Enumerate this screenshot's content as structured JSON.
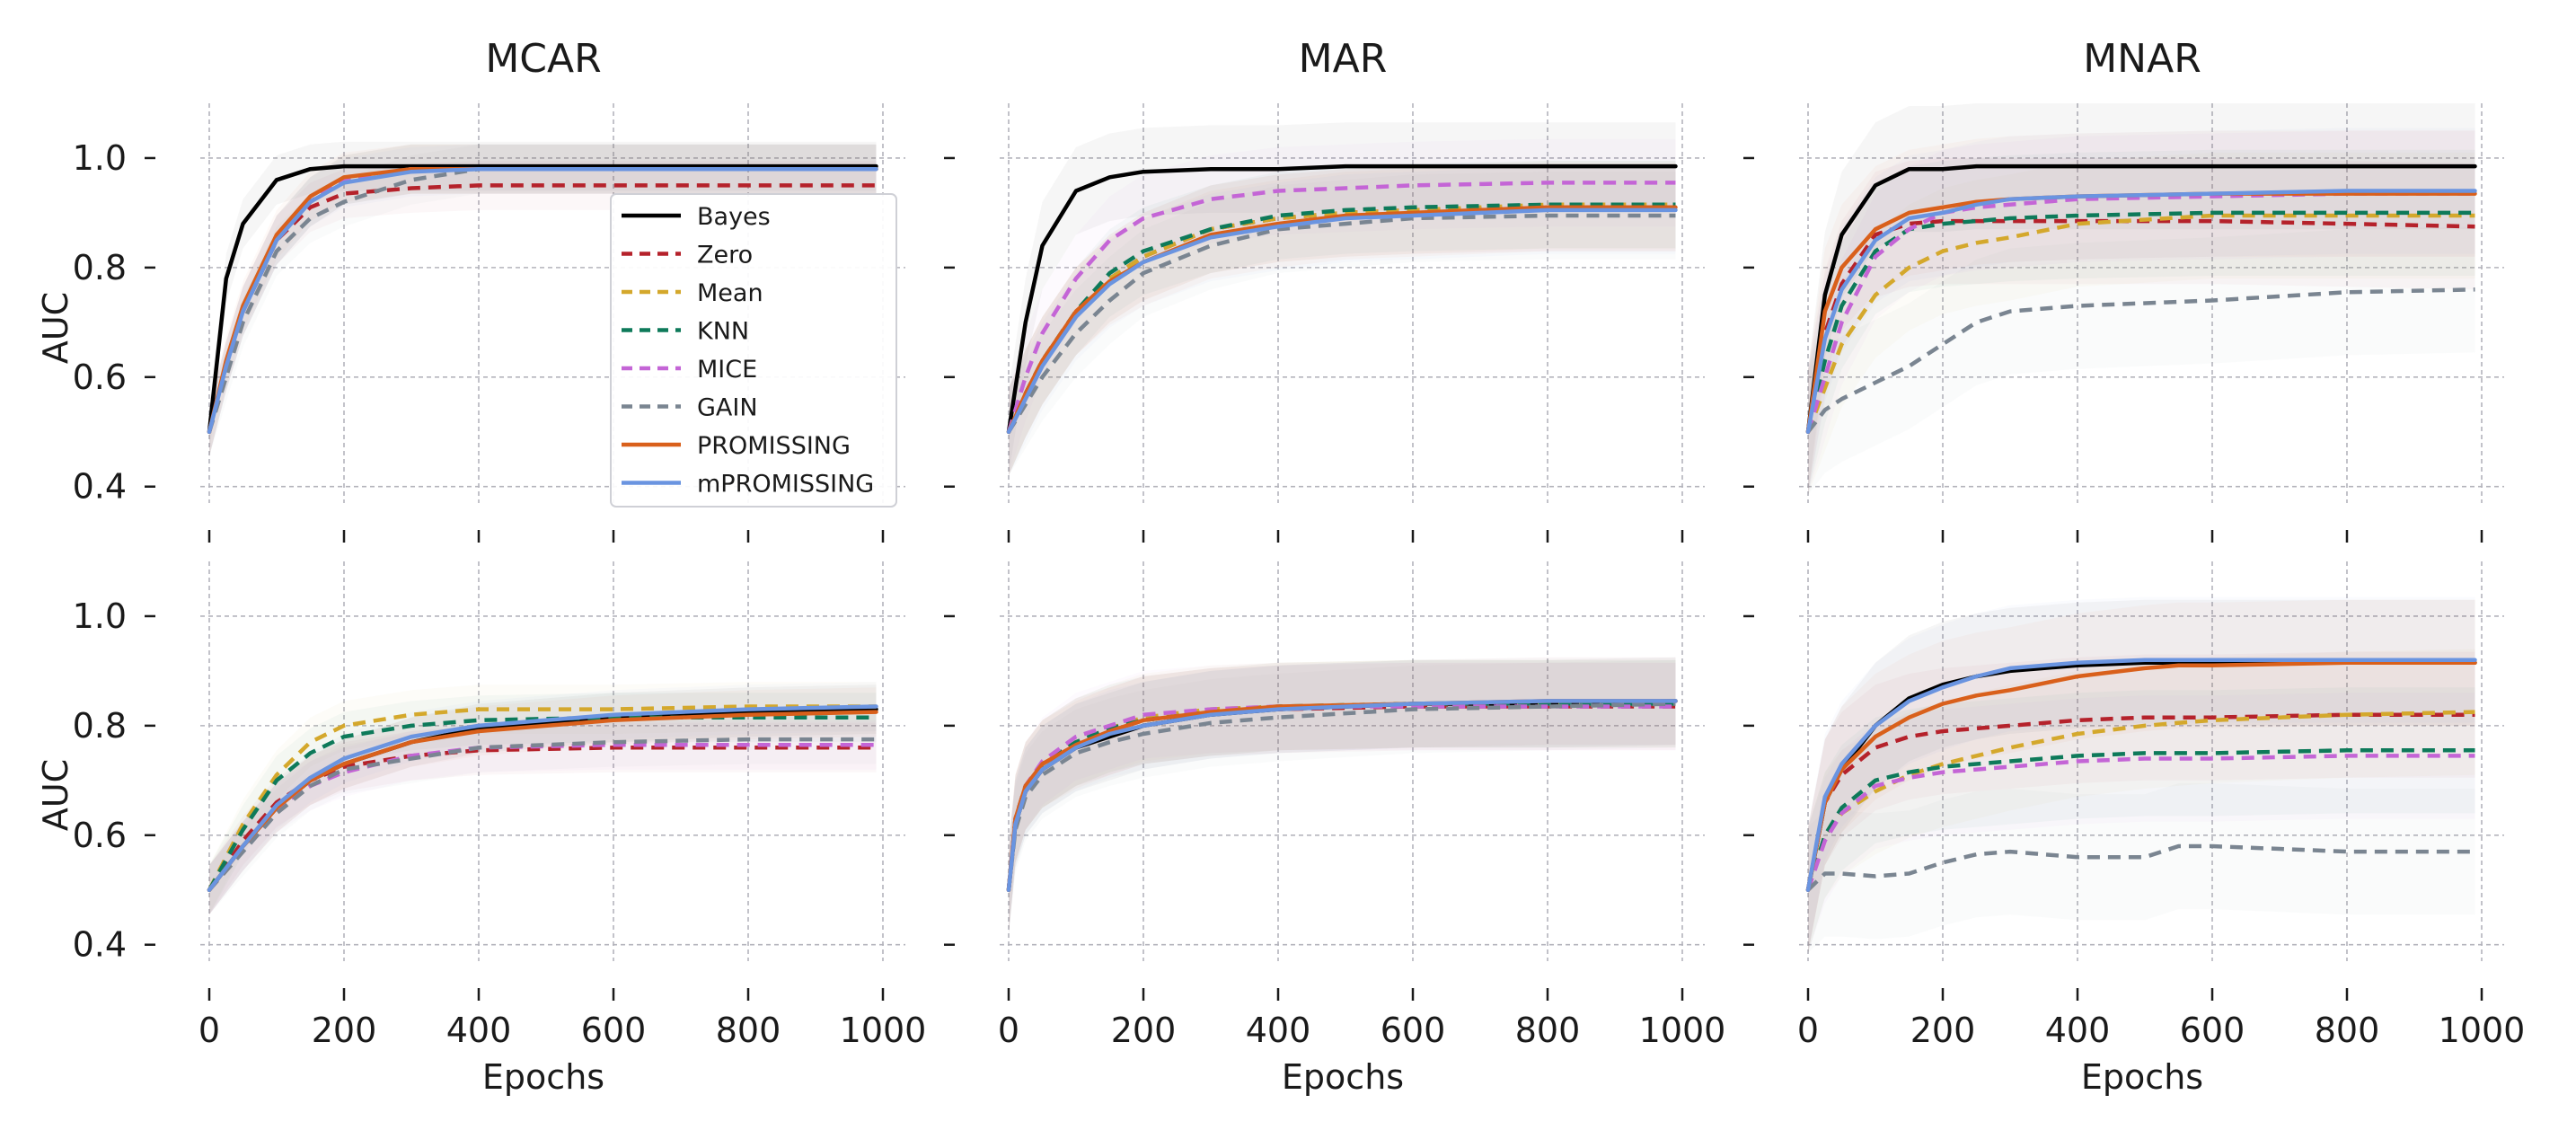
{
  "figure": {
    "column_titles": [
      "MCAR",
      "MAR",
      "MNAR"
    ],
    "ylabel": "AUC",
    "xlabel": "Epochs"
  },
  "chart_data": {
    "type": "line",
    "grid": true,
    "legend_location": "top-left panel, right side",
    "shared_axes": {
      "x_ticks": [
        0,
        200,
        400,
        600,
        800,
        1000
      ],
      "y_ticks": [
        0.4,
        0.6,
        0.8,
        1.0
      ],
      "x_tick_labels": [
        "0",
        "200",
        "400",
        "600",
        "800",
        "1000"
      ],
      "y_tick_labels": [
        "0.4",
        "0.6",
        "0.8",
        "1.0"
      ],
      "xlim": [
        0,
        1000
      ],
      "ylim": [
        0.37,
        1.1
      ]
    },
    "series_styles": [
      {
        "name": "Bayes",
        "color": "#000000",
        "dashed": false
      },
      {
        "name": "Zero",
        "color": "#b5222b",
        "dashed": true
      },
      {
        "name": "Mean",
        "color": "#d4a82c",
        "dashed": true
      },
      {
        "name": "KNN",
        "color": "#0e7a5a",
        "dashed": true
      },
      {
        "name": "MICE",
        "color": "#c465d6",
        "dashed": true
      },
      {
        "name": "GAIN",
        "color": "#7a8591",
        "dashed": true
      },
      {
        "name": "PROMISSING",
        "color": "#d9601b",
        "dashed": false
      },
      {
        "name": "mPROMISSING",
        "color": "#6a94e0",
        "dashed": false
      }
    ],
    "panels": [
      {
        "row": 0,
        "col": 0,
        "title": "MCAR",
        "show_legend": true,
        "x": [
          0,
          25,
          50,
          100,
          150,
          200,
          300,
          400,
          600,
          800,
          990
        ],
        "series": [
          {
            "name": "Bayes",
            "values": [
              0.5,
              0.78,
              0.88,
              0.96,
              0.98,
              0.985,
              0.985,
              0.985,
              0.985,
              0.985,
              0.985
            ]
          },
          {
            "name": "Zero",
            "values": [
              0.5,
              0.62,
              0.72,
              0.85,
              0.91,
              0.935,
              0.945,
              0.95,
              0.95,
              0.95,
              0.95
            ]
          },
          {
            "name": "Mean",
            "values": [
              0.5,
              0.62,
              0.72,
              0.85,
              0.92,
              0.96,
              0.98,
              0.98,
              0.98,
              0.98,
              0.98
            ]
          },
          {
            "name": "KNN",
            "values": [
              0.5,
              0.62,
              0.72,
              0.85,
              0.92,
              0.96,
              0.98,
              0.98,
              0.98,
              0.98,
              0.98
            ]
          },
          {
            "name": "MICE",
            "values": [
              0.5,
              0.62,
              0.72,
              0.85,
              0.92,
              0.96,
              0.98,
              0.98,
              0.98,
              0.98,
              0.98
            ]
          },
          {
            "name": "GAIN",
            "values": [
              0.5,
              0.6,
              0.7,
              0.83,
              0.89,
              0.92,
              0.96,
              0.98,
              0.98,
              0.98,
              0.98
            ]
          },
          {
            "name": "PROMISSING",
            "values": [
              0.5,
              0.63,
              0.73,
              0.86,
              0.93,
              0.965,
              0.98,
              0.98,
              0.98,
              0.98,
              0.98
            ]
          },
          {
            "name": "mPROMISSING",
            "values": [
              0.5,
              0.62,
              0.72,
              0.85,
              0.92,
              0.955,
              0.975,
              0.98,
              0.98,
              0.98,
              0.98
            ]
          }
        ]
      },
      {
        "row": 0,
        "col": 1,
        "title": "MAR",
        "show_legend": false,
        "x": [
          0,
          25,
          50,
          100,
          150,
          200,
          300,
          400,
          500,
          600,
          800,
          990
        ],
        "series": [
          {
            "name": "Bayes",
            "values": [
              0.5,
              0.7,
              0.84,
              0.94,
              0.965,
              0.975,
              0.98,
              0.98,
              0.985,
              0.985,
              0.985,
              0.985
            ]
          },
          {
            "name": "Zero",
            "values": [
              0.5,
              0.57,
              0.63,
              0.72,
              0.78,
              0.82,
              0.87,
              0.89,
              0.9,
              0.905,
              0.91,
              0.91
            ]
          },
          {
            "name": "Mean",
            "values": [
              0.5,
              0.57,
              0.63,
              0.72,
              0.78,
              0.82,
              0.87,
              0.89,
              0.9,
              0.905,
              0.915,
              0.915
            ]
          },
          {
            "name": "KNN",
            "values": [
              0.5,
              0.57,
              0.63,
              0.72,
              0.79,
              0.83,
              0.87,
              0.895,
              0.905,
              0.91,
              0.915,
              0.915
            ]
          },
          {
            "name": "MICE",
            "values": [
              0.5,
              0.6,
              0.68,
              0.78,
              0.85,
              0.89,
              0.925,
              0.94,
              0.945,
              0.95,
              0.955,
              0.955
            ]
          },
          {
            "name": "GAIN",
            "values": [
              0.5,
              0.55,
              0.6,
              0.68,
              0.74,
              0.79,
              0.84,
              0.87,
              0.88,
              0.89,
              0.895,
              0.895
            ]
          },
          {
            "name": "PROMISSING",
            "values": [
              0.5,
              0.57,
              0.63,
              0.72,
              0.775,
              0.81,
              0.86,
              0.88,
              0.895,
              0.9,
              0.91,
              0.91
            ]
          },
          {
            "name": "mPROMISSING",
            "values": [
              0.5,
              0.56,
              0.62,
              0.71,
              0.77,
              0.81,
              0.855,
              0.875,
              0.89,
              0.895,
              0.905,
              0.905
            ]
          }
        ]
      },
      {
        "row": 0,
        "col": 2,
        "title": "MNAR",
        "show_legend": false,
        "x": [
          0,
          25,
          50,
          100,
          150,
          200,
          250,
          300,
          400,
          600,
          800,
          990
        ],
        "series": [
          {
            "name": "Bayes",
            "values": [
              0.5,
              0.75,
              0.86,
              0.95,
              0.98,
              0.98,
              0.985,
              0.985,
              0.985,
              0.985,
              0.985,
              0.985
            ]
          },
          {
            "name": "Zero",
            "values": [
              0.5,
              0.68,
              0.77,
              0.86,
              0.88,
              0.885,
              0.885,
              0.885,
              0.885,
              0.885,
              0.88,
              0.875
            ]
          },
          {
            "name": "Mean",
            "values": [
              0.5,
              0.58,
              0.66,
              0.75,
              0.8,
              0.83,
              0.845,
              0.855,
              0.88,
              0.895,
              0.895,
              0.895
            ]
          },
          {
            "name": "KNN",
            "values": [
              0.5,
              0.63,
              0.73,
              0.83,
              0.87,
              0.88,
              0.885,
              0.89,
              0.895,
              0.9,
              0.9,
              0.9
            ]
          },
          {
            "name": "MICE",
            "values": [
              0.5,
              0.6,
              0.7,
              0.82,
              0.87,
              0.9,
              0.91,
              0.915,
              0.925,
              0.93,
              0.935,
              0.935
            ]
          },
          {
            "name": "GAIN",
            "values": [
              0.5,
              0.54,
              0.56,
              0.59,
              0.62,
              0.66,
              0.7,
              0.72,
              0.73,
              0.74,
              0.755,
              0.76
            ]
          },
          {
            "name": "PROMISSING",
            "values": [
              0.5,
              0.72,
              0.8,
              0.87,
              0.9,
              0.91,
              0.92,
              0.925,
              0.93,
              0.935,
              0.935,
              0.935
            ]
          },
          {
            "name": "mPROMISSING",
            "values": [
              0.5,
              0.67,
              0.76,
              0.85,
              0.89,
              0.9,
              0.915,
              0.925,
              0.93,
              0.935,
              0.94,
              0.94
            ]
          }
        ]
      },
      {
        "row": 1,
        "col": 0,
        "title": "MCAR",
        "show_legend": false,
        "x": [
          0,
          50,
          100,
          150,
          200,
          300,
          400,
          600,
          800,
          990
        ],
        "series": [
          {
            "name": "Bayes",
            "values": [
              0.5,
              0.58,
              0.65,
              0.7,
              0.73,
              0.77,
              0.795,
              0.815,
              0.825,
              0.83
            ]
          },
          {
            "name": "Zero",
            "values": [
              0.5,
              0.59,
              0.66,
              0.7,
              0.725,
              0.745,
              0.755,
              0.76,
              0.76,
              0.76
            ]
          },
          {
            "name": "Mean",
            "values": [
              0.5,
              0.62,
              0.71,
              0.77,
              0.8,
              0.82,
              0.83,
              0.83,
              0.835,
              0.835
            ]
          },
          {
            "name": "KNN",
            "values": [
              0.5,
              0.61,
              0.7,
              0.75,
              0.78,
              0.8,
              0.81,
              0.815,
              0.815,
              0.815
            ]
          },
          {
            "name": "MICE",
            "values": [
              0.5,
              0.58,
              0.65,
              0.69,
              0.715,
              0.745,
              0.76,
              0.765,
              0.765,
              0.765
            ]
          },
          {
            "name": "GAIN",
            "values": [
              0.5,
              0.57,
              0.64,
              0.69,
              0.72,
              0.74,
              0.76,
              0.77,
              0.775,
              0.775
            ]
          },
          {
            "name": "PROMISSING",
            "values": [
              0.5,
              0.58,
              0.65,
              0.7,
              0.73,
              0.77,
              0.79,
              0.81,
              0.82,
              0.825
            ]
          },
          {
            "name": "mPROMISSING",
            "values": [
              0.5,
              0.58,
              0.655,
              0.705,
              0.74,
              0.78,
              0.8,
              0.82,
              0.83,
              0.835
            ]
          }
        ]
      },
      {
        "row": 1,
        "col": 1,
        "title": "MAR",
        "show_legend": false,
        "x": [
          0,
          10,
          25,
          50,
          100,
          150,
          200,
          300,
          400,
          600,
          800,
          990
        ],
        "series": [
          {
            "name": "Bayes",
            "values": [
              0.5,
              0.62,
              0.68,
              0.72,
              0.76,
              0.78,
              0.8,
              0.82,
              0.83,
              0.84,
              0.84,
              0.845
            ]
          },
          {
            "name": "Zero",
            "values": [
              0.5,
              0.63,
              0.69,
              0.73,
              0.77,
              0.79,
              0.81,
              0.825,
              0.83,
              0.835,
              0.835,
              0.835
            ]
          },
          {
            "name": "Mean",
            "values": [
              0.5,
              0.63,
              0.69,
              0.73,
              0.77,
              0.795,
              0.815,
              0.83,
              0.835,
              0.84,
              0.84,
              0.84
            ]
          },
          {
            "name": "KNN",
            "values": [
              0.5,
              0.63,
              0.69,
              0.73,
              0.77,
              0.795,
              0.81,
              0.825,
              0.835,
              0.84,
              0.84,
              0.84
            ]
          },
          {
            "name": "MICE",
            "values": [
              0.5,
              0.63,
              0.69,
              0.735,
              0.78,
              0.8,
              0.82,
              0.83,
              0.835,
              0.835,
              0.835,
              0.835
            ]
          },
          {
            "name": "GAIN",
            "values": [
              0.5,
              0.61,
              0.67,
              0.71,
              0.75,
              0.77,
              0.785,
              0.805,
              0.815,
              0.83,
              0.835,
              0.84
            ]
          },
          {
            "name": "PROMISSING",
            "values": [
              0.5,
              0.63,
              0.69,
              0.73,
              0.765,
              0.79,
              0.81,
              0.825,
              0.835,
              0.84,
              0.845,
              0.845
            ]
          },
          {
            "name": "mPROMISSING",
            "values": [
              0.5,
              0.62,
              0.68,
              0.72,
              0.76,
              0.785,
              0.8,
              0.82,
              0.83,
              0.84,
              0.845,
              0.845
            ]
          }
        ]
      },
      {
        "row": 1,
        "col": 2,
        "title": "MNAR",
        "show_legend": false,
        "x": [
          0,
          25,
          50,
          100,
          150,
          200,
          250,
          300,
          400,
          500,
          550,
          600,
          800,
          990
        ],
        "series": [
          {
            "name": "Bayes",
            "values": [
              0.5,
              0.66,
              0.72,
              0.8,
              0.85,
              0.875,
              0.89,
              0.9,
              0.91,
              0.915,
              0.915,
              0.915,
              0.915,
              0.915
            ]
          },
          {
            "name": "Zero",
            "values": [
              0.5,
              0.66,
              0.71,
              0.76,
              0.78,
              0.79,
              0.795,
              0.8,
              0.81,
              0.815,
              0.815,
              0.815,
              0.82,
              0.82
            ]
          },
          {
            "name": "Mean",
            "values": [
              0.5,
              0.6,
              0.64,
              0.68,
              0.71,
              0.73,
              0.745,
              0.76,
              0.785,
              0.8,
              0.805,
              0.81,
              0.82,
              0.825
            ]
          },
          {
            "name": "KNN",
            "values": [
              0.5,
              0.6,
              0.65,
              0.7,
              0.715,
              0.725,
              0.73,
              0.735,
              0.745,
              0.75,
              0.75,
              0.75,
              0.755,
              0.755
            ]
          },
          {
            "name": "MICE",
            "values": [
              0.5,
              0.59,
              0.64,
              0.69,
              0.705,
              0.715,
              0.72,
              0.725,
              0.735,
              0.74,
              0.74,
              0.74,
              0.745,
              0.745
            ]
          },
          {
            "name": "GAIN",
            "values": [
              0.5,
              0.53,
              0.53,
              0.525,
              0.53,
              0.55,
              0.565,
              0.57,
              0.56,
              0.56,
              0.58,
              0.58,
              0.57,
              0.57
            ]
          },
          {
            "name": "PROMISSING",
            "values": [
              0.5,
              0.66,
              0.72,
              0.78,
              0.815,
              0.84,
              0.855,
              0.865,
              0.89,
              0.905,
              0.91,
              0.91,
              0.915,
              0.915
            ]
          },
          {
            "name": "mPROMISSING",
            "values": [
              0.5,
              0.67,
              0.73,
              0.8,
              0.845,
              0.87,
              0.89,
              0.905,
              0.915,
              0.92,
              0.92,
              0.92,
              0.92,
              0.92
            ]
          }
        ]
      }
    ]
  }
}
